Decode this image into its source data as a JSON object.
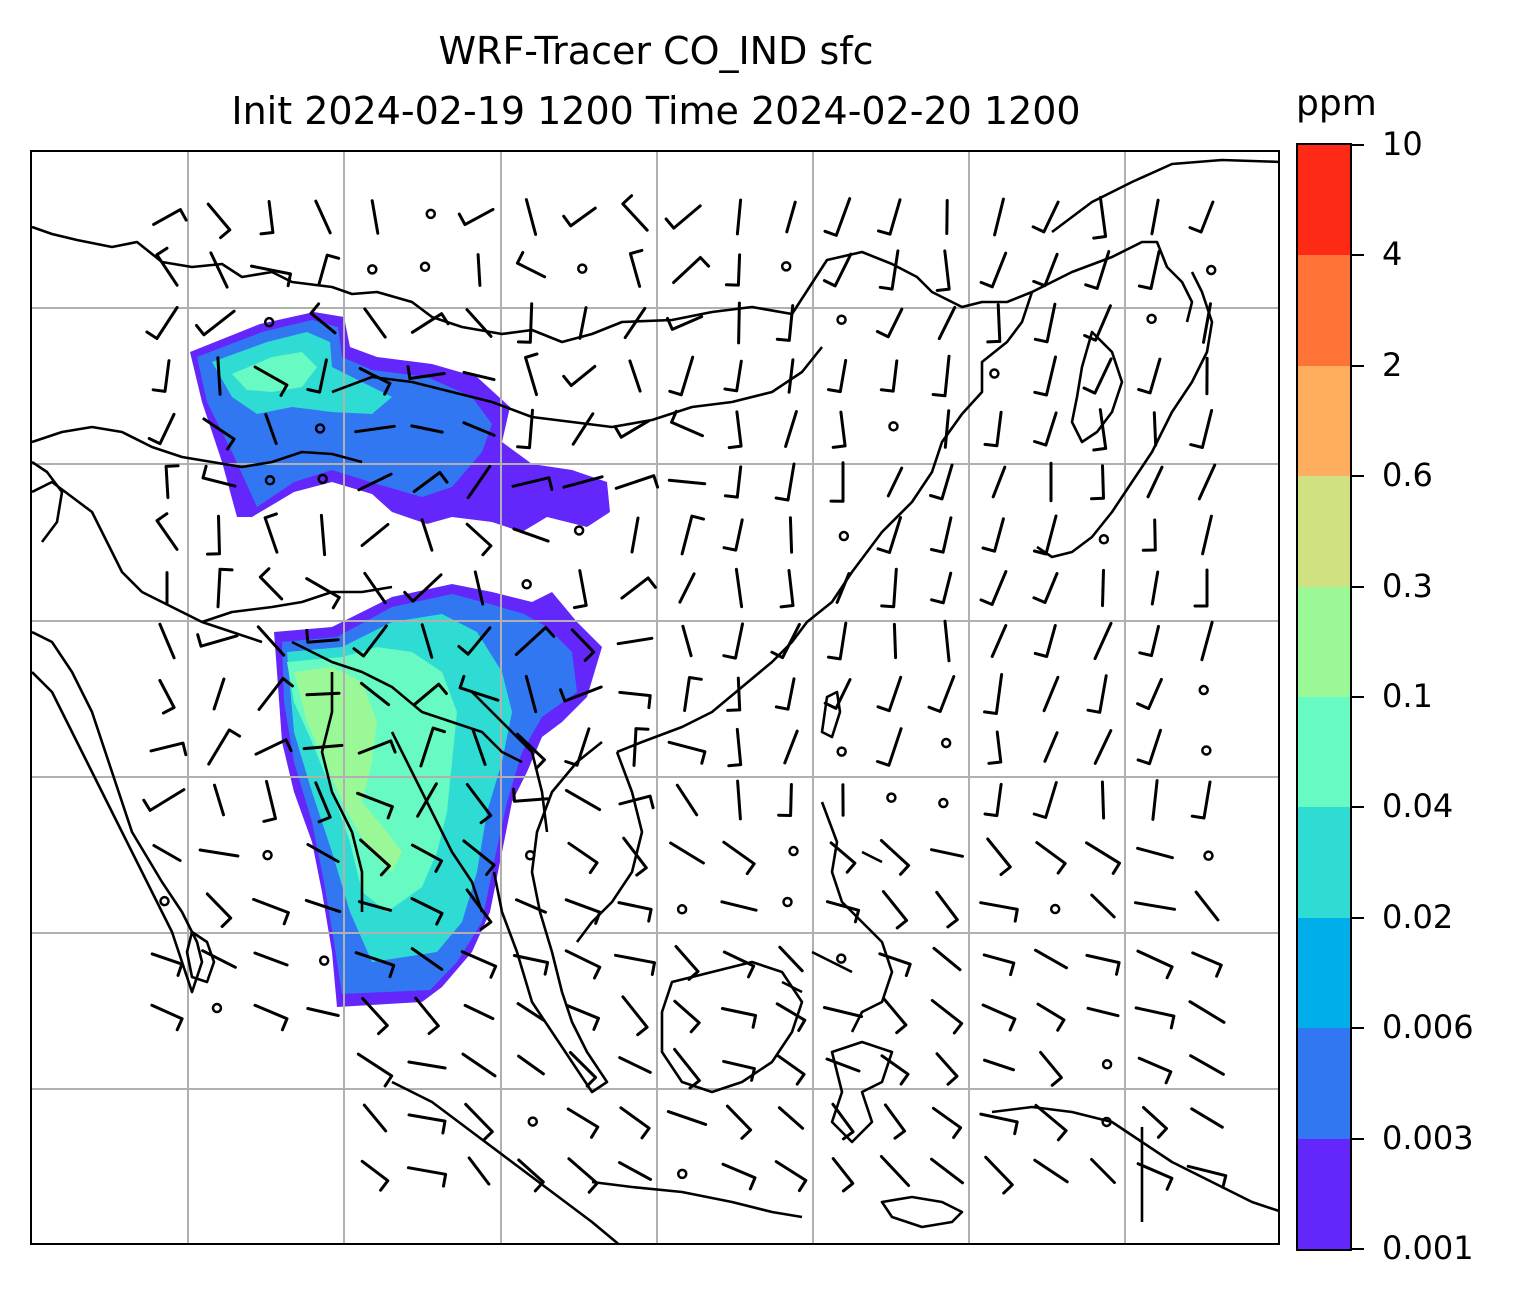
{
  "title": {
    "line1": "WRF-Tracer CO_IND sfc",
    "line2": "Init 2024-02-19 1200 Time 2024-02-20 1200"
  },
  "colorbar": {
    "unit": "ppm",
    "levels": [
      "0.001",
      "0.003",
      "0.006",
      "0.02",
      "0.04",
      "0.1",
      "0.3",
      "0.6",
      "2",
      "4",
      "10"
    ],
    "colors": [
      "#6427fb",
      "#3177f2",
      "#00afe9",
      "#2fdcd3",
      "#67fac3",
      "#9af996",
      "#cfe180",
      "#ffae60",
      "#ff7238",
      "#ff2a16"
    ]
  },
  "map": {
    "gridline_color": "#b0b0b0",
    "coastline_color": "#000000",
    "wind_barb_color": "#000000"
  }
}
